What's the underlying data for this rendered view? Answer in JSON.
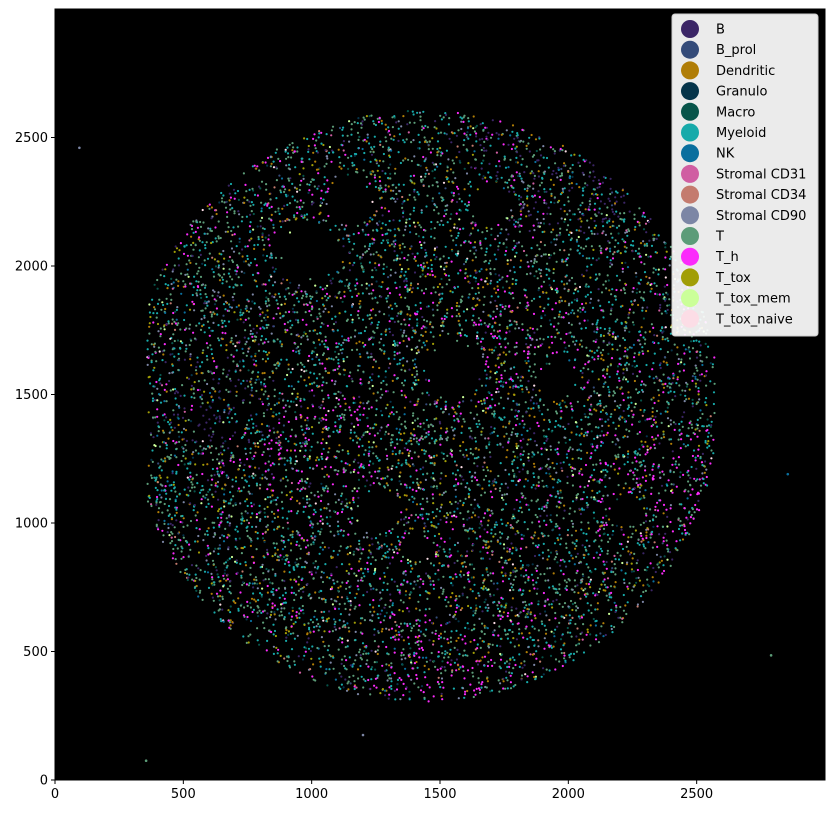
{
  "chart_data": {
    "type": "scatter",
    "title": "",
    "xlabel": "",
    "ylabel": "",
    "xlim": [
      0,
      3000
    ],
    "ylim": [
      0,
      3000
    ],
    "xticks": [
      0,
      500,
      1000,
      1500,
      2000,
      2500
    ],
    "yticks": [
      0,
      500,
      1000,
      1500,
      2000,
      2500
    ],
    "background": "#000000",
    "grid": false,
    "legend_position": "top-right",
    "tissue_region": {
      "center": [
        1435,
        1455
      ],
      "radius": 1150
    },
    "series": [
      {
        "name": "B",
        "color": "#3b2566",
        "share": 0.06
      },
      {
        "name": "B_prol",
        "color": "#344b79",
        "share": 0.01
      },
      {
        "name": "Dendritic",
        "color": "#b07d06",
        "share": 0.08
      },
      {
        "name": "Granulo",
        "color": "#05344a",
        "share": 0.02
      },
      {
        "name": "Macro",
        "color": "#07544a",
        "share": 0.04
      },
      {
        "name": "Myeloid",
        "color": "#17aaaa",
        "share": 0.22
      },
      {
        "name": "NK",
        "color": "#0a6f9e",
        "share": 0.03
      },
      {
        "name": "Stromal CD31",
        "color": "#d05ea2",
        "share": 0.01
      },
      {
        "name": "Stromal CD34",
        "color": "#c47b6e",
        "share": 0.02
      },
      {
        "name": "Stromal CD90",
        "color": "#7c86a5",
        "share": 0.06
      },
      {
        "name": "T",
        "color": "#5c9c78",
        "share": 0.28
      },
      {
        "name": "T_h",
        "color": "#fb2bfb",
        "share": 0.1
      },
      {
        "name": "T_tox",
        "color": "#a19e06",
        "share": 0.04
      },
      {
        "name": "T_tox_mem",
        "color": "#cbff99",
        "share": 0.02
      },
      {
        "name": "T_tox_naive",
        "color": "#fcdde6",
        "share": 0.01
      }
    ],
    "notable_points": [
      {
        "series": "Stromal CD90",
        "x": 95,
        "y": 2460
      },
      {
        "series": "T",
        "x": 355,
        "y": 75
      },
      {
        "series": "Stromal CD90",
        "x": 1200,
        "y": 175
      },
      {
        "series": "T",
        "x": 2790,
        "y": 485
      },
      {
        "series": "NK",
        "x": 2855,
        "y": 1190
      }
    ]
  }
}
